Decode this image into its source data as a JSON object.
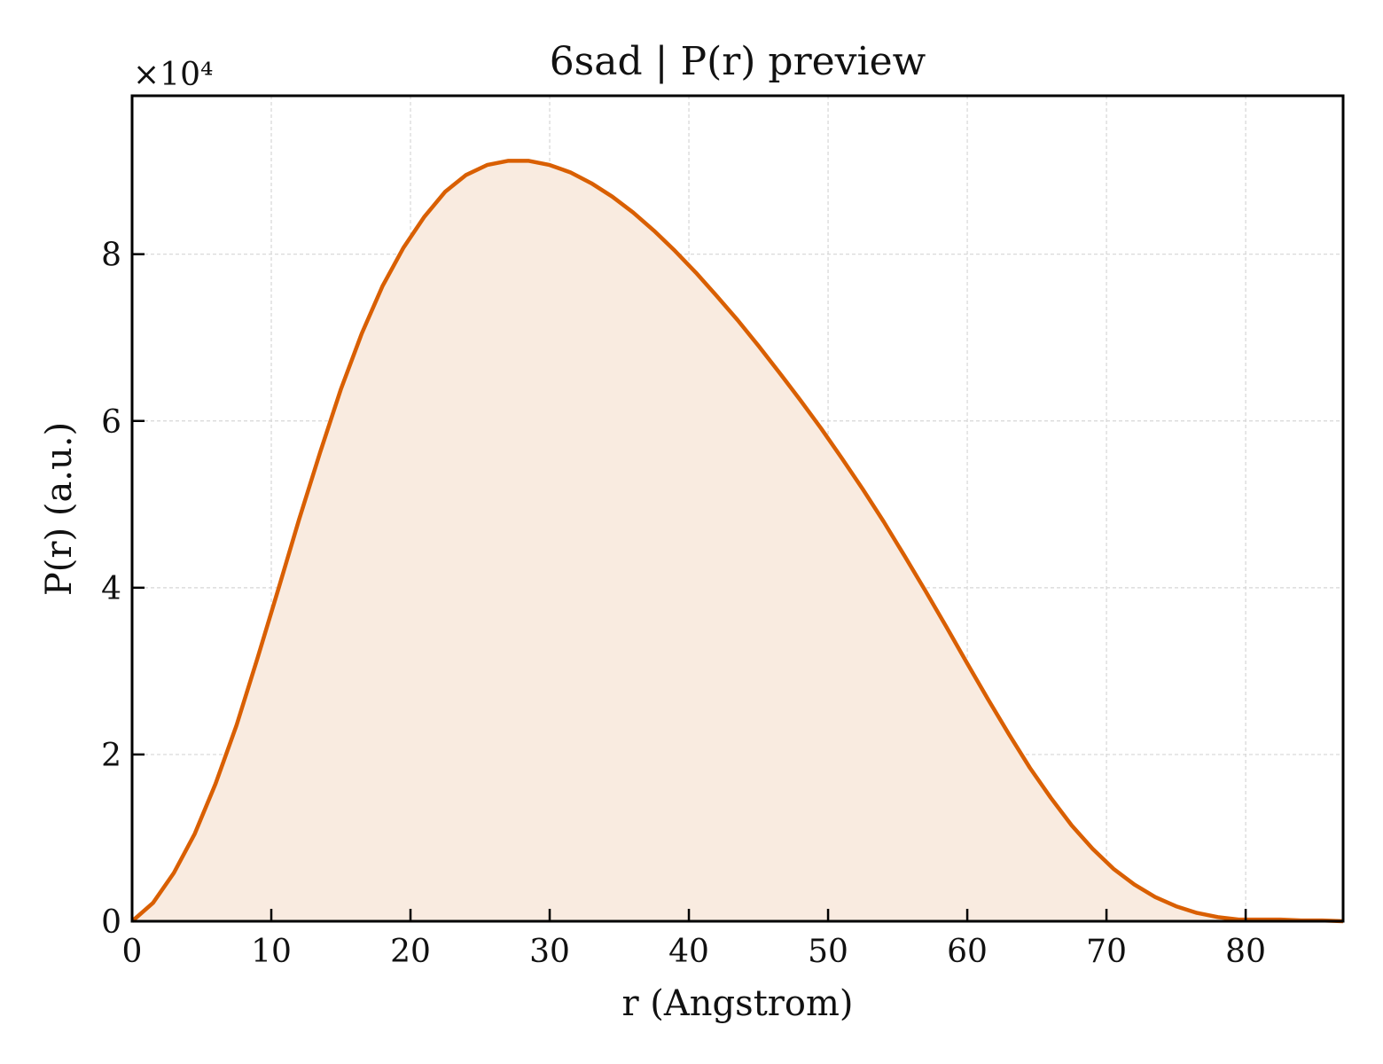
{
  "chart_data": {
    "type": "area",
    "title": "6sad | P(r) preview",
    "xlabel": "r (Angstrom)",
    "ylabel": "P(r) (a.u.)",
    "y_scale_label": "×10⁴",
    "y_multiplier": 10000,
    "xlim": [
      0,
      87
    ],
    "ylim": [
      0,
      9.9
    ],
    "x_ticks": [
      0,
      10,
      20,
      30,
      40,
      50,
      60,
      70,
      80
    ],
    "x_tick_labels": [
      "0",
      "10",
      "20",
      "30",
      "40",
      "50",
      "60",
      "70",
      "80"
    ],
    "y_ticks": [
      0,
      2,
      4,
      6,
      8
    ],
    "y_tick_labels": [
      "0",
      "2",
      "4",
      "6",
      "8"
    ],
    "grid": true,
    "line_color": "#d95f02",
    "fill_color": "#f9ebe0",
    "series": [
      {
        "x": [
          0,
          1.5,
          3,
          4.5,
          6,
          7.5,
          9,
          10.5,
          12,
          13.5,
          15,
          16.5,
          18,
          19.5,
          21,
          22.5,
          24,
          25.5,
          27,
          28.5,
          30,
          31.5,
          33,
          34.5,
          36,
          37.5,
          39,
          40.5,
          42,
          43.5,
          45,
          46.5,
          48,
          49.5,
          51,
          52.5,
          54,
          55.5,
          57,
          58.5,
          60,
          61.5,
          63,
          64.5,
          66,
          67.5,
          69,
          70.5,
          72,
          73.5,
          75,
          76.5,
          78,
          79.5,
          81,
          82.5,
          84,
          85.5,
          87
        ],
        "y": [
          0.0,
          0.22,
          0.58,
          1.05,
          1.65,
          2.35,
          3.15,
          3.98,
          4.82,
          5.62,
          6.38,
          7.05,
          7.62,
          8.08,
          8.45,
          8.75,
          8.95,
          9.07,
          9.12,
          9.12,
          9.07,
          8.98,
          8.85,
          8.69,
          8.5,
          8.28,
          8.04,
          7.78,
          7.5,
          7.21,
          6.9,
          6.58,
          6.25,
          5.91,
          5.55,
          5.18,
          4.79,
          4.38,
          3.96,
          3.53,
          3.09,
          2.66,
          2.24,
          1.84,
          1.48,
          1.15,
          0.87,
          0.63,
          0.44,
          0.29,
          0.18,
          0.1,
          0.05,
          0.02,
          0.02,
          0.02,
          0.01,
          0.01,
          0.0
        ]
      }
    ]
  }
}
